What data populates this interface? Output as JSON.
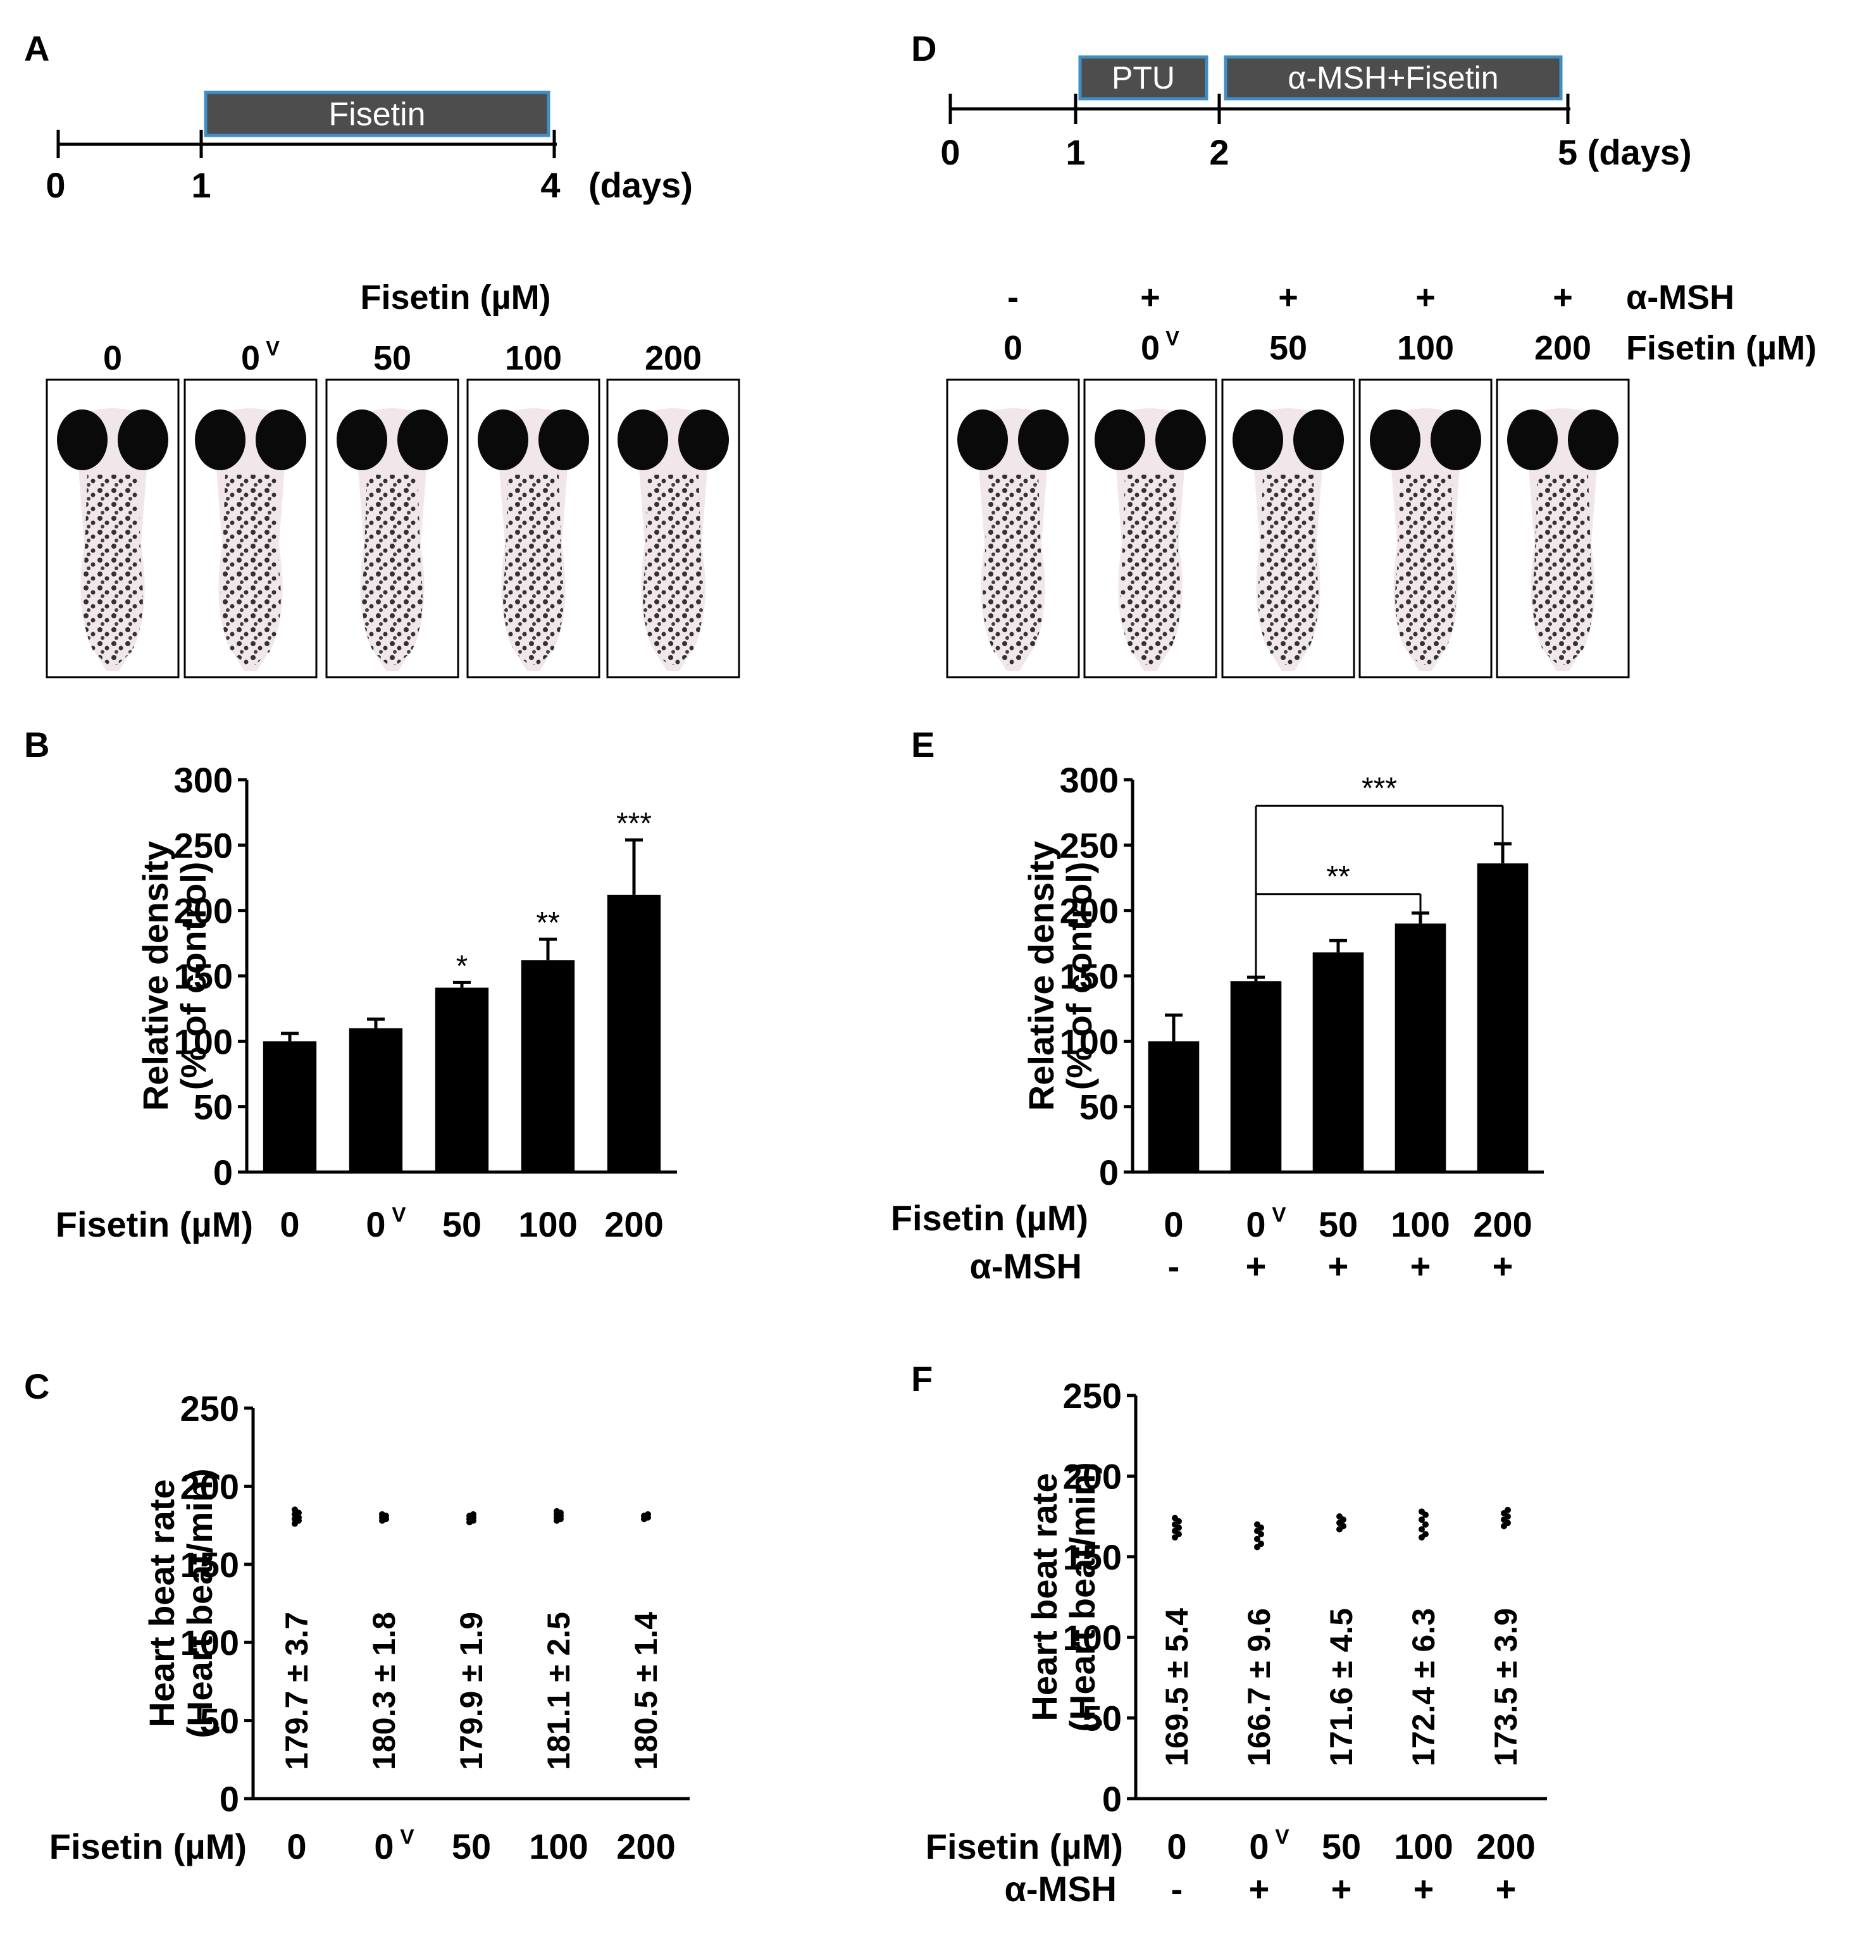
{
  "colors": {
    "bar": "#000000",
    "box_fill": "#4d4d4d",
    "box_border": "#3f8fc4",
    "box_text": "#ffffff",
    "larva_bg": "#f1e7ea"
  },
  "panels": {
    "A": {
      "label": "A",
      "timeline": {
        "ticks": [
          "0",
          "1",
          "4"
        ],
        "unit": "(days)",
        "boxes": [
          "Fisetin"
        ]
      },
      "images": {
        "header": "Fisetin (µM)",
        "labels": [
          "0",
          "0",
          "50",
          "100",
          "200"
        ],
        "superscript": "V"
      }
    },
    "D": {
      "label": "D",
      "timeline": {
        "ticks": [
          "0",
          "1",
          "2",
          "5 (days)"
        ],
        "boxes": [
          "PTU",
          "α-MSH+Fisetin"
        ]
      },
      "images": {
        "msh_signs": [
          "-",
          "+",
          "+",
          "+",
          "+"
        ],
        "msh_label": "α-MSH",
        "labels": [
          "0",
          "0",
          "50",
          "100",
          "200"
        ],
        "superscript": "V",
        "fisetin_label": "Fisetin (µM)"
      }
    }
  },
  "chart_data": [
    {
      "id": "B",
      "label": "B",
      "type": "bar",
      "ylabel": "Relative density",
      "ylabel2": "(% of control)",
      "xlabel": "Fisetin (µM)",
      "categories": [
        "0",
        "0",
        "50",
        "100",
        "200"
      ],
      "superscript": "V",
      "values": [
        100,
        110,
        141,
        162,
        212
      ],
      "errors": [
        6,
        7,
        4,
        16,
        42
      ],
      "significance": [
        "",
        "",
        "*",
        "**",
        "***"
      ],
      "yticks": [
        "0",
        "50",
        "100",
        "150",
        "200",
        "250",
        "300"
      ],
      "ylim": [
        0,
        300
      ]
    },
    {
      "id": "E",
      "label": "E",
      "type": "bar",
      "ylabel": "Relative density",
      "ylabel2": "(% of control)",
      "xlabel": "Fisetin (µM)",
      "x2label": "α-MSH",
      "categories": [
        "0",
        "0",
        "50",
        "100",
        "200"
      ],
      "superscript": "V",
      "msh_signs": [
        "-",
        "+",
        "+",
        "+",
        "+"
      ],
      "values": [
        100,
        146,
        168,
        190,
        236
      ],
      "errors": [
        20,
        3,
        9,
        8,
        15
      ],
      "brackets": [
        {
          "from": 1,
          "to": 4,
          "label": "***"
        },
        {
          "from": 1,
          "to": 3,
          "label": "**"
        }
      ],
      "yticks": [
        "0",
        "50",
        "100",
        "150",
        "200",
        "250",
        "300"
      ],
      "ylim": [
        0,
        300
      ]
    },
    {
      "id": "C",
      "label": "C",
      "type": "scatter",
      "ylabel": "Heart beat rate",
      "ylabel2": "(Heart beat/min)",
      "xlabel": "Fisetin (µM)",
      "categories": [
        "0",
        "0",
        "50",
        "100",
        "200"
      ],
      "superscript": "V",
      "means": [
        179.7,
        180.3,
        179.9,
        181.1,
        180.5
      ],
      "value_labels": [
        "179.7 ± 3.7",
        "180.3 ± 1.8",
        "179.9 ± 1.9",
        "181.1 ± 2.5",
        "180.5 ± 1.4"
      ],
      "points": [
        [
          176,
          178,
          179,
          180,
          182,
          183,
          185
        ],
        [
          178,
          179,
          180,
          181,
          182
        ],
        [
          177,
          178,
          179,
          180,
          181,
          182
        ],
        [
          178,
          179,
          180,
          181,
          182,
          183,
          184
        ],
        [
          179,
          180,
          181,
          182
        ]
      ],
      "yticks": [
        "0",
        "50",
        "100",
        "150",
        "200",
        "250"
      ],
      "ylim": [
        0,
        250
      ]
    },
    {
      "id": "F",
      "label": "F",
      "type": "scatter",
      "ylabel": "Heart beat rate",
      "ylabel2": "(Heart beat/min)",
      "xlabel": "Fisetin (µM)",
      "x2label": "α-MSH",
      "categories": [
        "0",
        "0",
        "50",
        "100",
        "200"
      ],
      "superscript": "V",
      "msh_signs": [
        "-",
        "+",
        "+",
        "+",
        "+"
      ],
      "means": [
        169.5,
        166.7,
        171.6,
        172.4,
        173.5
      ],
      "value_labels": [
        "169.5 ± 5.4",
        "166.7 ± 9.6",
        "171.6 ± 4.5",
        "172.4 ± 6.3",
        "173.5 ± 3.9"
      ],
      "points": [
        [
          162,
          164,
          166,
          168,
          170,
          172,
          174
        ],
        [
          156,
          158,
          161,
          164,
          166,
          168,
          170
        ],
        [
          167,
          169,
          171,
          173,
          175
        ],
        [
          162,
          164,
          167,
          170,
          173,
          176,
          178
        ],
        [
          169,
          171,
          173,
          175,
          177,
          179
        ]
      ],
      "yticks": [
        "0",
        "50",
        "100",
        "150",
        "200",
        "250"
      ],
      "ylim": [
        0,
        250
      ]
    }
  ]
}
